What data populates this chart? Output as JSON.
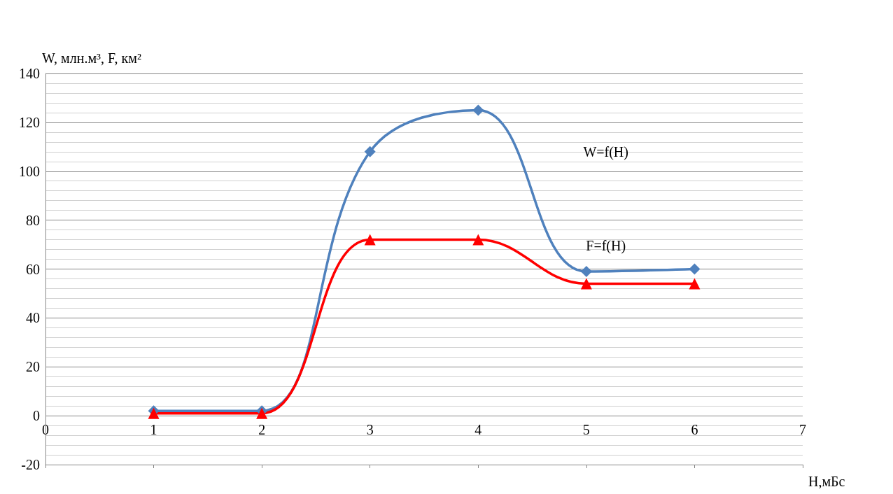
{
  "chart_data": {
    "type": "line",
    "ylabel": "W, млн.м³, F, км²",
    "xlabel": "H,мБс",
    "x": [
      1,
      2,
      3,
      4,
      5,
      6
    ],
    "series": [
      {
        "color": "#4f81bd",
        "marker": "diamond",
        "values": [
          2,
          2,
          108,
          125,
          59,
          60
        ]
      },
      {
        "color": "#ff0000",
        "marker": "triangle",
        "values": [
          1,
          1,
          72,
          72,
          54,
          54
        ]
      }
    ],
    "annotations": [
      "W=f(H)",
      "F=f(H)"
    ],
    "xlim": [
      0,
      7
    ],
    "xticks": [
      0,
      1,
      2,
      3,
      4,
      5,
      6,
      7
    ],
    "ylim": [
      -20,
      140
    ],
    "yticks": [
      -20,
      0,
      20,
      40,
      60,
      80,
      100,
      120,
      140
    ],
    "grid": "y",
    "legend": false
  }
}
